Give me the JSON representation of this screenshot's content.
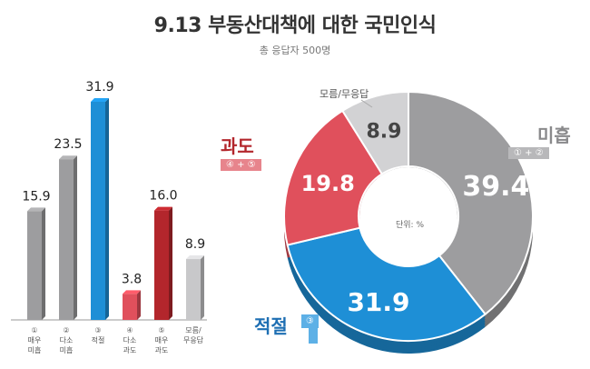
{
  "header": {
    "title": "9.13 부동산대책에 대한 국민인식",
    "subtitle": "총 응답자 500명"
  },
  "colors": {
    "gray": "#9d9d9f",
    "gray_light": "#c8c8ca",
    "blue": "#1e8fd6",
    "red_light": "#e0505c",
    "red_dark": "#b3262c"
  },
  "chart_data": [
    {
      "type": "bar",
      "categories": [
        "① 매우 미흡",
        "② 다소 미흡",
        "③ 적절",
        "④ 다소 과도",
        "⑤ 매우 과도",
        "모름/ 무응답"
      ],
      "category_lines": [
        [
          "①",
          "매우",
          "미흡"
        ],
        [
          "②",
          "다소",
          "미흡"
        ],
        [
          "③",
          "적절"
        ],
        [
          "④",
          "다소",
          "과도"
        ],
        [
          "⑤",
          "매우",
          "과도"
        ],
        [
          "모름/",
          "무응답"
        ]
      ],
      "values": [
        15.9,
        23.5,
        31.9,
        3.8,
        16.0,
        8.9
      ],
      "value_labels": [
        "15.9",
        "23.5",
        "31.9",
        "3.8",
        "16.0",
        "8.9"
      ],
      "colors": [
        "#9d9d9f",
        "#9d9d9f",
        "#1e8fd6",
        "#e0505c",
        "#b3262c",
        "#c8c8ca"
      ],
      "ylim": [
        0,
        31.9
      ]
    },
    {
      "type": "pie",
      "donut": true,
      "unit_label": "단위: %",
      "slices": [
        {
          "label": "미흡",
          "sub": "① + ②",
          "value": 39.4,
          "value_label": "39.4",
          "color": "#9d9d9f"
        },
        {
          "label": "적절",
          "sub": "③",
          "value": 31.9,
          "value_label": "31.9",
          "color": "#1e8fd6"
        },
        {
          "label": "과도",
          "sub": "④ + ⑤",
          "value": 19.8,
          "value_label": "19.8",
          "color": "#e0505c"
        },
        {
          "label": "모름/무응답",
          "sub": "",
          "value": 8.9,
          "value_label": "8.9",
          "color": "#d2d2d4"
        }
      ]
    }
  ]
}
